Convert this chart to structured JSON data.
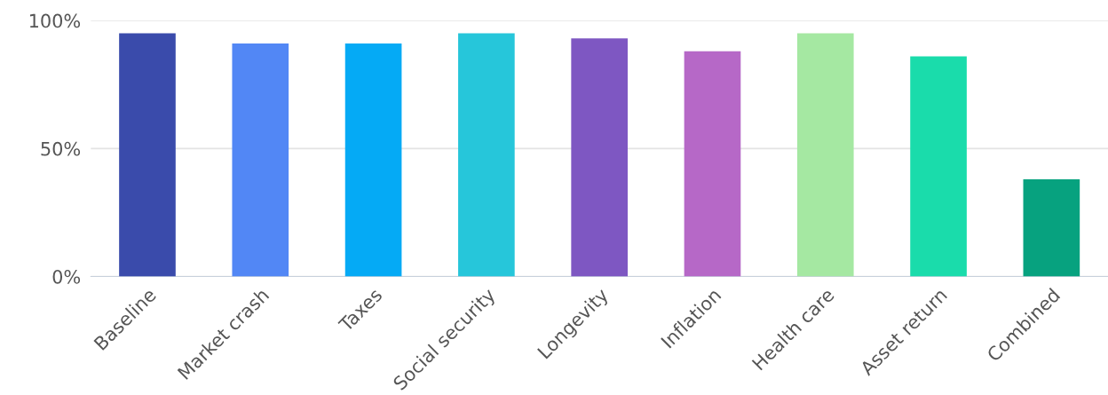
{
  "chart_data": {
    "type": "bar",
    "categories": [
      "Baseline",
      "Market crash",
      "Taxes",
      "Social security",
      "Longevity",
      "Inflation",
      "Health care",
      "Asset return",
      "Combined"
    ],
    "values": [
      95,
      91,
      91,
      95,
      93,
      88,
      95,
      86,
      38
    ],
    "colors": [
      "#3a4bab",
      "#5287f5",
      "#05aaf5",
      "#26c6da",
      "#7e57c2",
      "#b668c7",
      "#a5e8a2",
      "#1adcab",
      "#07a27f"
    ],
    "ylim": [
      0,
      100
    ],
    "yticks": [
      {
        "value": 0,
        "label": "0%"
      },
      {
        "value": 50,
        "label": "50%"
      },
      {
        "value": 100,
        "label": "100%"
      }
    ],
    "grid": "y"
  }
}
